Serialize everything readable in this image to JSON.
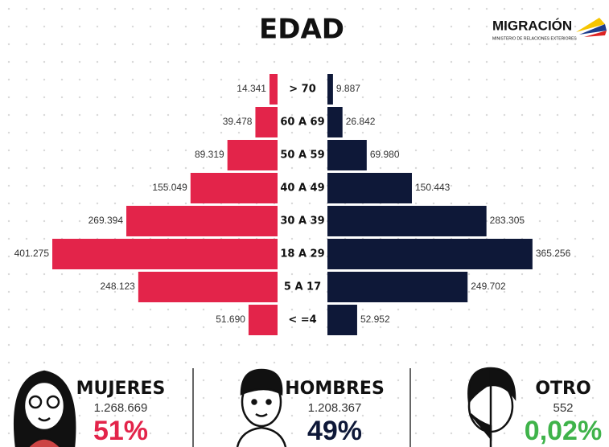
{
  "chart_data": {
    "type": "pyramid",
    "title": "EDAD",
    "categories": [
      "> 70",
      "60 A 69",
      "50 A 59",
      "40 A 49",
      "30 A 39",
      "18 A 29",
      "5 A 17",
      "< =4"
    ],
    "series": [
      {
        "color": "#e3244a",
        "values": [
          14341,
          39478,
          89319,
          155049,
          269394,
          401275,
          248123,
          51690
        ],
        "value_labels": [
          "14.341",
          "39.478",
          "89.319",
          "155.049",
          "269.394",
          "401.275",
          "248.123",
          "51.690"
        ]
      },
      {
        "color": "#0e1838",
        "values": [
          9887,
          26842,
          69980,
          150443,
          283305,
          365256,
          249702,
          52952
        ],
        "value_labels": [
          "9.887",
          "26.842",
          "69.980",
          "150.443",
          "283.305",
          "365.256",
          "249.702",
          "52.952"
        ]
      }
    ]
  },
  "logo": {
    "name": "MIGRACIÓN",
    "subtitle": "MINISTERIO DE RELACIONES EXTERIORES"
  },
  "summary": [
    {
      "label": "MUJERES",
      "total": "1.268.669",
      "share": "51%",
      "color": "#e3244a"
    },
    {
      "label": "HOMBRES",
      "total": "1.208.367",
      "share": "49%",
      "color": "#0e1838"
    },
    {
      "label": "OTRO",
      "total": "552",
      "share": "0,02%",
      "color": "#3fb34a"
    }
  ]
}
